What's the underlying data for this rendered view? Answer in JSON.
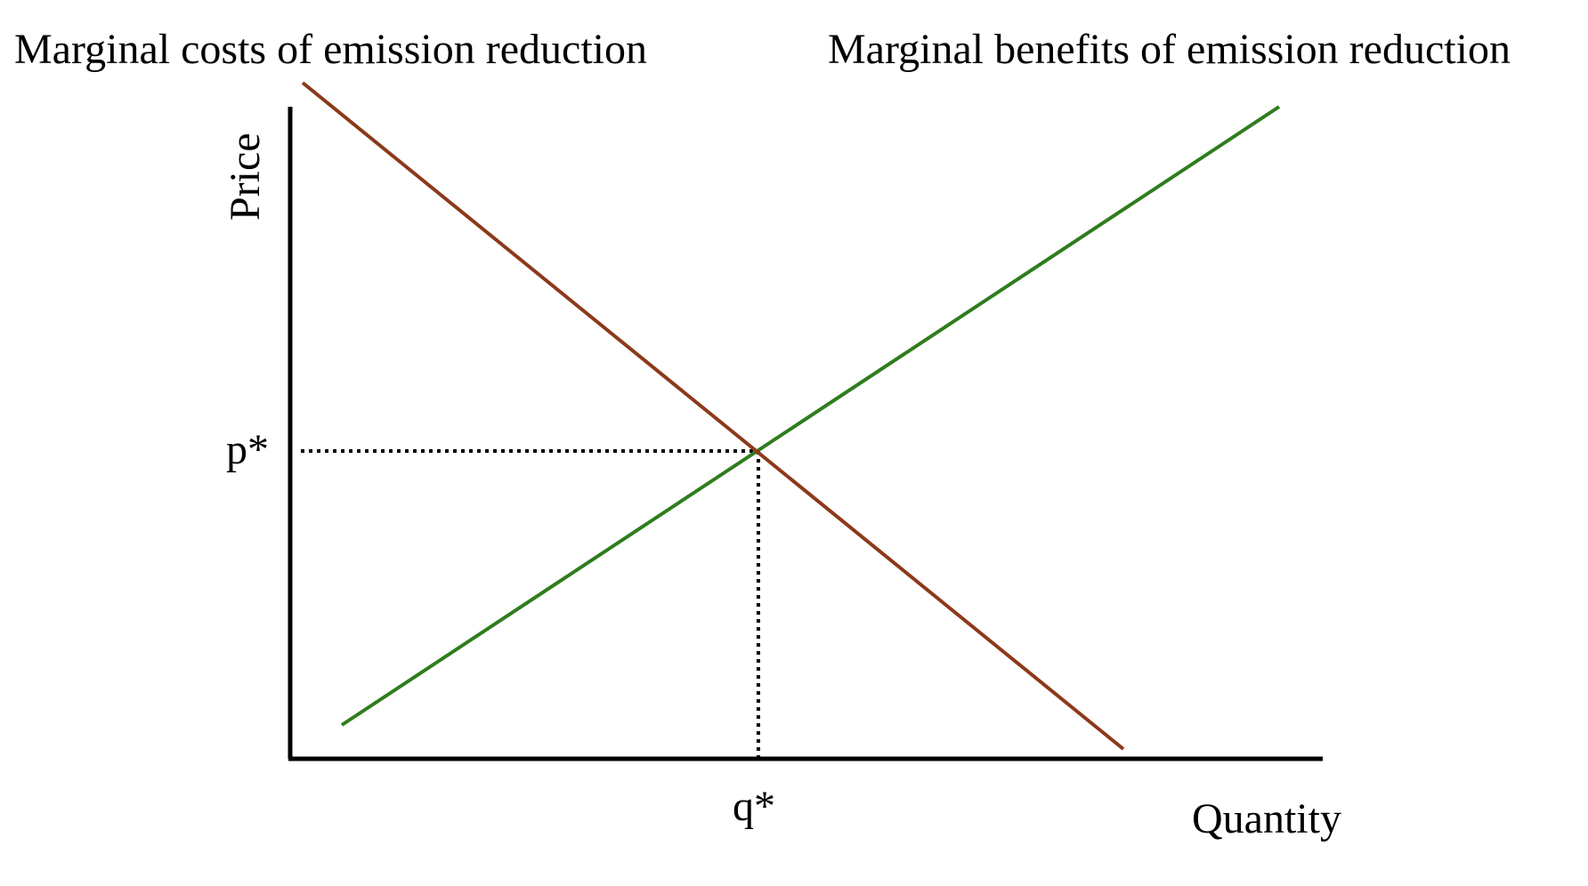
{
  "labels": {
    "costs_curve": "Marginal costs of emission reduction",
    "benefits_curve": "Marginal benefits of emission reduction",
    "y_axis": "Price",
    "x_axis": "Quantity",
    "p_star": "p*",
    "q_star": "q*"
  },
  "colors": {
    "costs_curve": "#8B3A1A",
    "benefits_curve": "#2E7D1E",
    "axes": "#000000",
    "guides": "#000000"
  },
  "equilibrium": {
    "price_label": "p*",
    "quantity_label": "q*"
  }
}
